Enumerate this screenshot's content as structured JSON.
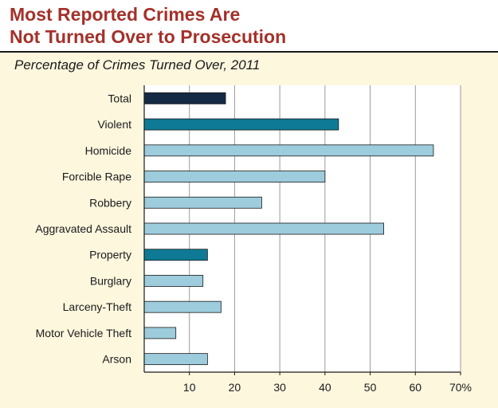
{
  "title_lines": [
    "Most Reported Crimes Are",
    "Not Turned Over to Prosecution"
  ],
  "chart_data": {
    "type": "bar",
    "orientation": "horizontal",
    "title": "Most Reported Crimes Are Not Turned Over to Prosecution",
    "subtitle": "Percentage of Crimes Turned Over, 2011",
    "categories": [
      "Total",
      "Violent",
      "Homicide",
      "Forcible Rape",
      "Robbery",
      "Aggravated Assault",
      "Property",
      "Burglary",
      "Larceny-Theft",
      "Motor Vehicle Theft",
      "Arson"
    ],
    "values": [
      18,
      43,
      64,
      40,
      26,
      53,
      14,
      13,
      17,
      7,
      14
    ],
    "bar_colors": [
      "#142a44",
      "#0f7a95",
      "#9dccdc",
      "#9dccdc",
      "#9dccdc",
      "#9dccdc",
      "#0f7a95",
      "#9dccdc",
      "#9dccdc",
      "#9dccdc",
      "#9dccdc"
    ],
    "xlim": [
      0,
      70
    ],
    "xticks": [
      10,
      20,
      30,
      40,
      50,
      60,
      70
    ],
    "xtick_labels": [
      "10",
      "20",
      "30",
      "40",
      "50",
      "60",
      "70%"
    ],
    "grid": true,
    "xlabel": "",
    "ylabel": ""
  }
}
